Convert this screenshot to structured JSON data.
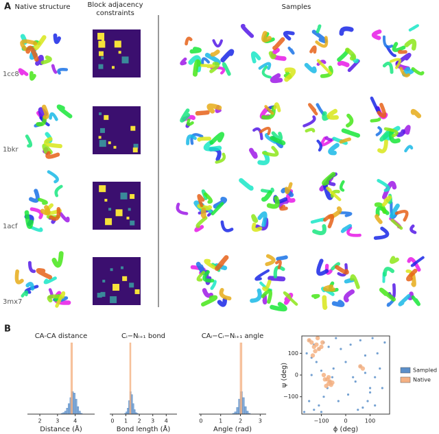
{
  "panel_a": {
    "label": "A",
    "headers": [
      "Native structure",
      "Block adjacency constraints",
      "Samples"
    ],
    "rows": [
      "1cc8",
      "1bkr",
      "1acf",
      "3mx7"
    ]
  },
  "panel_b": {
    "label": "B"
  },
  "chart_data": [
    {
      "type": "histogram",
      "title": "CA-CA distance",
      "xlabel": "Distance (Å)",
      "xlim": [
        1.3,
        5.1
      ],
      "xticks": [
        2,
        3,
        4
      ],
      "series": [
        {
          "name": "Sampled",
          "color": "#5b8fc9",
          "bins": [
            3.2,
            3.3,
            3.4,
            3.5,
            3.6,
            3.7,
            3.8,
            3.9,
            4.0,
            4.1,
            4.2,
            4.3,
            4.4
          ],
          "values": [
            1,
            2,
            4,
            8,
            14,
            22,
            30,
            28,
            20,
            10,
            4,
            1
          ]
        },
        {
          "name": "Native",
          "color": "#f4b183",
          "bins": [
            3.75,
            3.85
          ],
          "values": [
            95
          ]
        }
      ]
    },
    {
      "type": "histogram",
      "title": "Cᵢ−Nᵢ₊₁ bond",
      "xlabel": "Bond length (Å)",
      "xlim": [
        -0.2,
        4.8
      ],
      "xticks": [
        0,
        1,
        2,
        3,
        4
      ],
      "series": [
        {
          "name": "Sampled",
          "color": "#5b8fc9",
          "bins": [
            0.9,
            1.0,
            1.1,
            1.2,
            1.3,
            1.4,
            1.5,
            1.6,
            1.7,
            1.8,
            1.9
          ],
          "values": [
            1,
            3,
            8,
            18,
            30,
            26,
            14,
            6,
            2,
            1
          ]
        },
        {
          "name": "Native",
          "color": "#f4b183",
          "bins": [
            1.28,
            1.38
          ],
          "values": [
            95
          ]
        }
      ]
    },
    {
      "type": "histogram",
      "title": "CAᵢ−Cᵢ−Nᵢ₊₁ angle",
      "xlabel": "Angle (rad)",
      "xlim": [
        -0.1,
        3.3
      ],
      "xticks": [
        0,
        1,
        2,
        3
      ],
      "series": [
        {
          "name": "Sampled",
          "color": "#5b8fc9",
          "bins": [
            1.6,
            1.7,
            1.8,
            1.9,
            2.0,
            2.1,
            2.2,
            2.3,
            2.4,
            2.5
          ],
          "values": [
            1,
            3,
            9,
            20,
            30,
            22,
            10,
            4,
            1
          ]
        },
        {
          "name": "Native",
          "color": "#f4b183",
          "bins": [
            1.98,
            2.08
          ],
          "values": [
            95
          ]
        }
      ]
    },
    {
      "type": "scatter",
      "xlabel": "ϕ (deg)",
      "ylabel": "ψ (deg)",
      "xlim": [
        -180,
        180
      ],
      "ylim": [
        -180,
        180
      ],
      "xticks": [
        {
          "value": -100,
          "label": "−100"
        },
        0,
        100
      ],
      "yticks": [
        {
          "value": -100,
          "label": "−100"
        },
        0,
        100
      ],
      "legend": "right",
      "series": [
        {
          "name": "Sampled",
          "color": "#5b8fc9",
          "x": [
            -150,
            -130,
            -110,
            -90,
            -70,
            -160,
            -140,
            -120,
            -100,
            -80,
            -60,
            -75,
            -65,
            -55,
            -90,
            -110,
            -130,
            -150,
            -40,
            -20,
            0,
            20,
            40,
            60,
            80,
            100,
            120,
            140,
            160,
            70,
            90,
            110,
            130,
            -170,
            -50,
            -30,
            10,
            50,
            150,
            60,
            80,
            100,
            -100,
            -140,
            30,
            120
          ],
          "values": [
            160,
            140,
            120,
            150,
            130,
            100,
            80,
            60,
            20,
            -20,
            -40,
            -60,
            -30,
            -10,
            -100,
            -140,
            -160,
            -120,
            170,
            120,
            60,
            140,
            -30,
            40,
            10,
            -60,
            -10,
            30,
            150,
            -150,
            -120,
            170,
            100,
            -170,
            30,
            -120,
            -90,
            -160,
            -60,
            160,
            90,
            -80,
            -170,
            0,
            -10,
            -140
          ]
        },
        {
          "name": "Native",
          "color": "#f4b183",
          "x": [
            -140,
            -130,
            -120,
            -110,
            -100,
            -150,
            -125,
            -95,
            -85,
            -70,
            -65,
            -60,
            -75,
            -80,
            -55,
            -70,
            -115,
            60,
            70,
            -135,
            -90
          ],
          "values": [
            150,
            130,
            140,
            120,
            130,
            160,
            110,
            150,
            -20,
            -40,
            -30,
            -45,
            -20,
            -50,
            -35,
            -10,
            170,
            40,
            30,
            90,
            0
          ]
        }
      ]
    }
  ]
}
